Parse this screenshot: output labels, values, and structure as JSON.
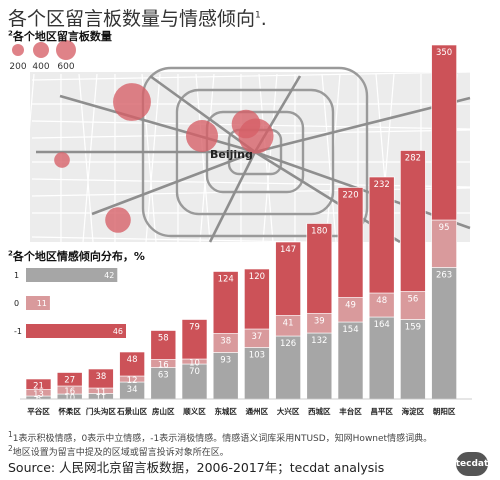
{
  "title": "各个区留言板数量与情感倾向",
  "title_sup": "1",
  "title_tail": ".",
  "size_legend": {
    "sup": "2",
    "title": "各个地区留言板数量",
    "labels": [
      "200",
      "400",
      "600"
    ],
    "values": [
      200,
      400,
      600
    ]
  },
  "map": {
    "city_label": "Beijing",
    "bubbles": [
      {
        "name": "bubble-a",
        "value": 350
      },
      {
        "name": "bubble-b",
        "value": 300
      },
      {
        "name": "bubble-c",
        "value": 250
      },
      {
        "name": "bubble-d",
        "value": 200
      },
      {
        "name": "bubble-e",
        "value": 160
      },
      {
        "name": "bubble-f",
        "value": 60
      }
    ]
  },
  "sentiment_legend": {
    "sup": "2",
    "title": "各个地区情感倾向分布，%",
    "rows": [
      {
        "label": "1",
        "value": 42
      },
      {
        "label": "0",
        "value": 11
      },
      {
        "label": "-1",
        "value": 46
      }
    ]
  },
  "chart_data": {
    "type": "bar",
    "stacked": true,
    "categories": [
      "平谷区",
      "怀柔区",
      "门头沟区",
      "石景山区",
      "房山区",
      "顺义区",
      "东城区",
      "通州区",
      "大兴区",
      "西城区",
      "丰台区",
      "昌平区",
      "海淀区",
      "朝阳区"
    ],
    "series": [
      {
        "name": "1",
        "values": [
          6,
          10,
          11,
          34,
          63,
          70,
          93,
          103,
          126,
          132,
          154,
          164,
          159,
          263
        ]
      },
      {
        "name": "0",
        "values": [
          13,
          16,
          11,
          12,
          16,
          10,
          38,
          37,
          41,
          39,
          49,
          48,
          56,
          95
        ]
      },
      {
        "name": "-1",
        "values": [
          21,
          27,
          38,
          48,
          58,
          79,
          124,
          120,
          147,
          180,
          220,
          232,
          282,
          350
        ]
      }
    ],
    "colors": {
      "1": "#a6a6a6",
      "0": "#d99a9c",
      "-1": "#cc5258"
    }
  },
  "footnotes": [
    "1表示积极情感，0表示中立情感，-1表示消极情感。情感语义词库采用NTUSD，知网Hownet情感词典。",
    "地区设置为留言中提及的区域或留言投诉对象所在区。"
  ],
  "footnote_sups": [
    "1",
    "2"
  ],
  "source": "Source: 人民网北京留言板数据，2006-2017年；tecdat analysis",
  "logo": "tecdat"
}
